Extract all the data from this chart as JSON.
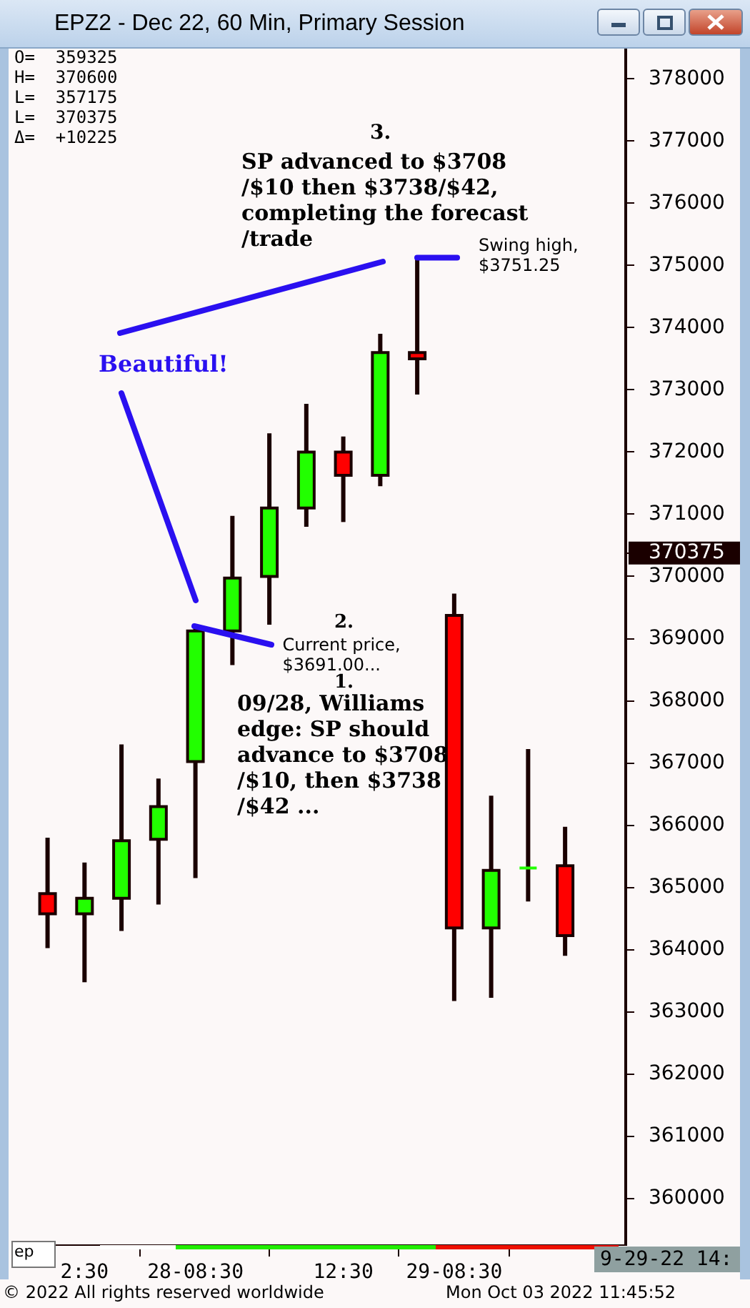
{
  "chart_data": {
    "type": "candlestick",
    "title": "EPZ2 - Dec 22, 60 Min, Primary Session",
    "categories": [
      null,
      "2:30",
      null,
      null,
      "28-08:30",
      null,
      null,
      null,
      "12:30",
      null,
      null,
      "29-08:30",
      null,
      null,
      null
    ],
    "ohlc": [
      [
        364900,
        365800,
        364025,
        364575
      ],
      [
        364575,
        365400,
        363475,
        364825
      ],
      [
        364825,
        367300,
        364300,
        365750
      ],
      [
        365775,
        366750,
        364725,
        366300
      ],
      [
        367025,
        369225,
        365150,
        369125
      ],
      [
        369125,
        370975,
        368575,
        369975
      ],
      [
        370000,
        372300,
        369225,
        371100
      ],
      [
        371100,
        372775,
        370800,
        372000
      ],
      [
        372000,
        372250,
        370875,
        371625
      ],
      [
        371625,
        373900,
        371450,
        373600
      ],
      [
        373600,
        375125,
        372925,
        373500
      ],
      [
        369375,
        369725,
        363175,
        364350
      ],
      [
        364350,
        366475,
        363225,
        365275
      ],
      [
        365300,
        367225,
        364775,
        365325
      ],
      [
        365350,
        365975,
        363900,
        364225
      ]
    ],
    "ref_lines": [
      {
        "axis": "y",
        "value": 375125,
        "label": "Swing high,\n$3751.25",
        "color": "#2a10f0"
      }
    ],
    "colors": [
      "#ff0000",
      "#22ff00",
      "#22ff00",
      "#22ff00",
      "#22ff00",
      "#22ff00",
      "#22ff00",
      "#22ff00",
      "#ff0000",
      "#22ff00",
      "#ff0000",
      "#ff0000",
      "#22ff00",
      "#22ff00",
      "#ff0000"
    ],
    "ylim": [
      359250,
      378500
    ],
    "yticks": [
      360000,
      361000,
      362000,
      363000,
      364000,
      365000,
      366000,
      367000,
      368000,
      369000,
      370000,
      {
        "value": 370375,
        "label": "370375"
      },
      371000,
      372000,
      373000,
      374000,
      375000,
      376000,
      377000,
      378000
    ],
    "annotations": [
      "O=  359325\nH=  370600\nL=  357175\nL=  370375\nΔ=  +10225",
      "3.",
      "SP advanced to $3708\n/$10 then $3738/$42,\ncompleting the forecast\n/trade",
      "Beautiful!",
      "2.",
      {
        "text": "Current price,\n$3691.00...",
        "x": "28-08:30",
        "y": 369125
      },
      "1.",
      "09/28, Williams\nedge: SP should\nadvance to $3708\n/$10, then $3738\n/$42 ...",
      "ep",
      "9-29-22 14:",
      "© 2022 All rights reserved worldwide",
      "Mon Oct 03 2022 11:45:52"
    ]
  }
}
